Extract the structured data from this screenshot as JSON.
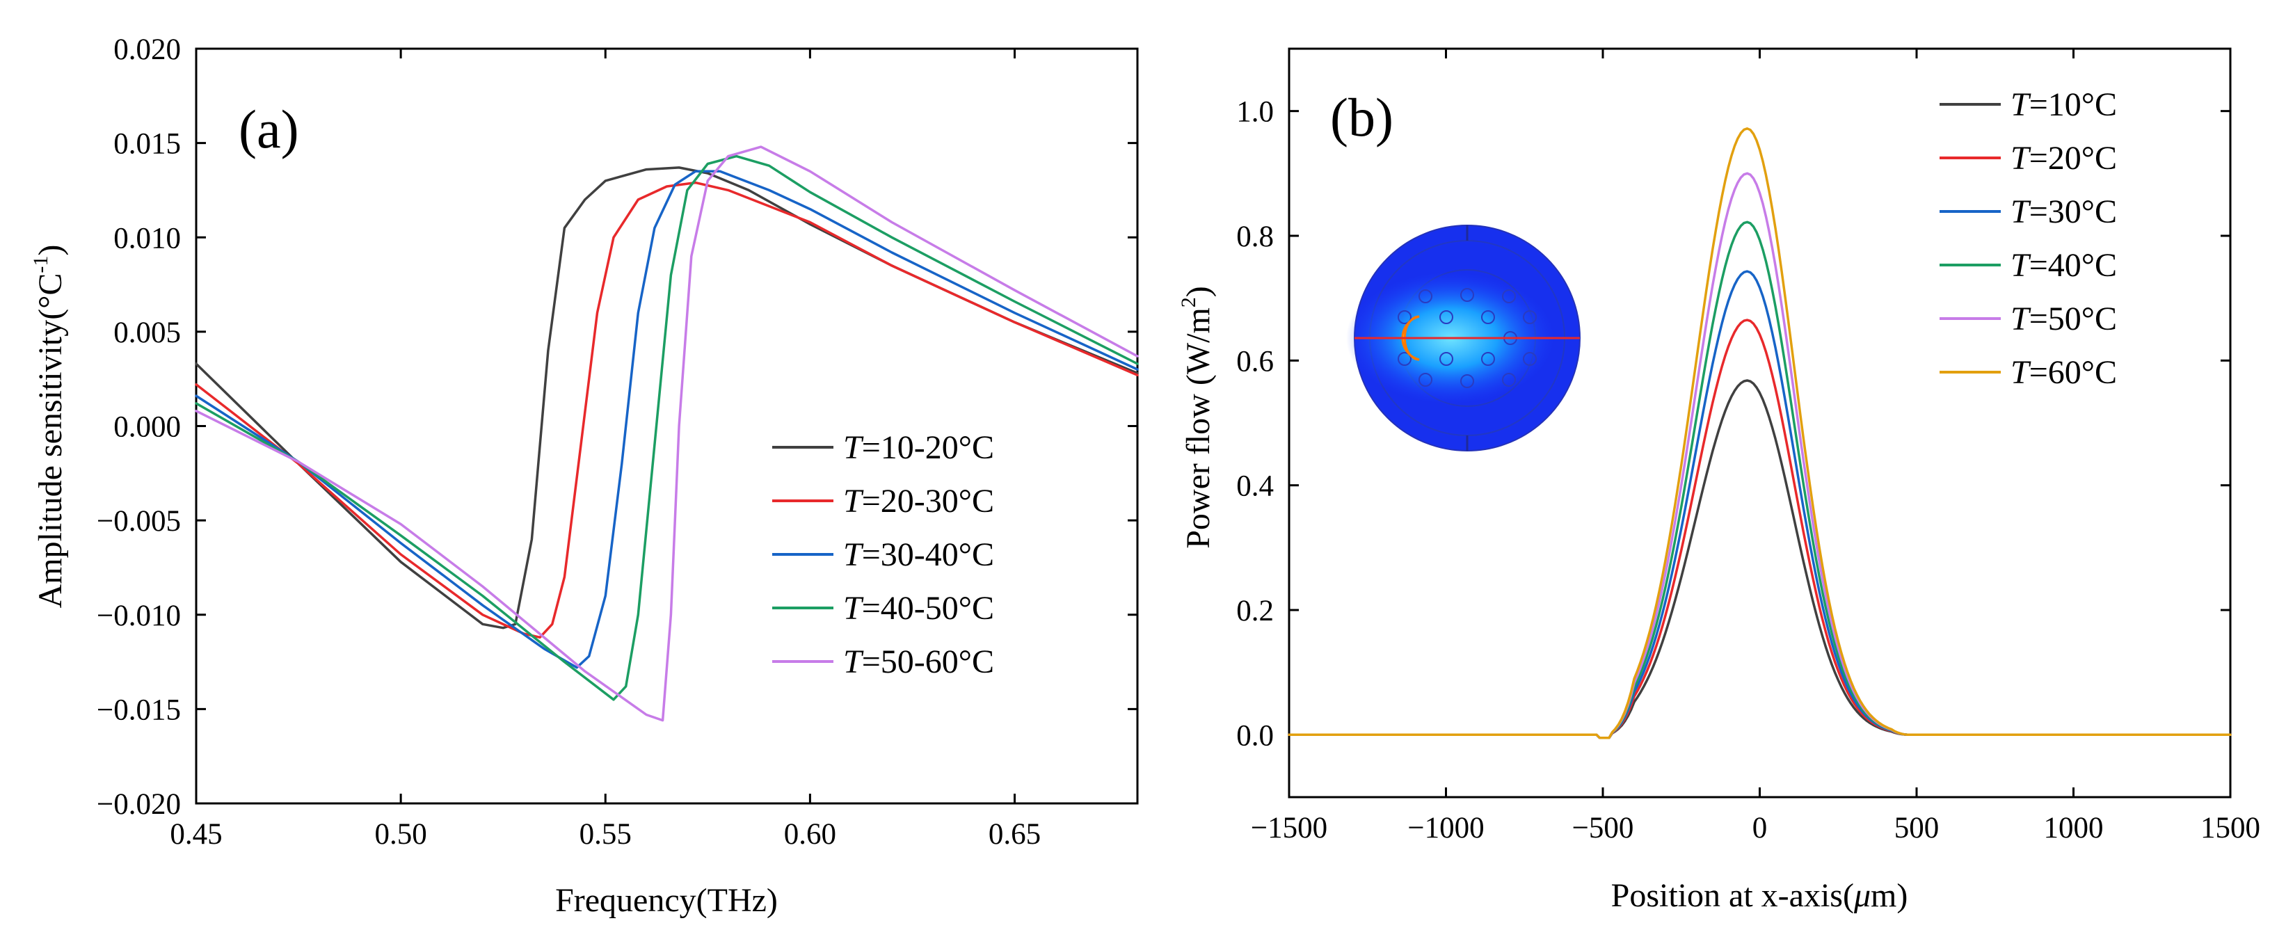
{
  "chart_data": [
    {
      "type": "line",
      "panel_label": "(a)",
      "xlabel": "Frequency(THz)",
      "ylabel": "Amplitude sensitivity(°C",
      "ylabel_sup": "-1",
      "ylabel_end": ")",
      "xlim": [
        0.45,
        0.68
      ],
      "ylim": [
        -0.02,
        0.02
      ],
      "x_ticks": [
        0.45,
        0.5,
        0.55,
        0.6,
        0.65
      ],
      "x_tick_labels": [
        "0.45",
        "0.50",
        "0.55",
        "0.60",
        "0.65"
      ],
      "y_ticks": [
        -0.02,
        -0.015,
        -0.01,
        -0.005,
        0.0,
        0.005,
        0.01,
        0.015,
        0.02
      ],
      "y_tick_labels": [
        "−0.020",
        "−0.015",
        "−0.010",
        "−0.005",
        "0.000",
        "0.005",
        "0.010",
        "0.015",
        "0.020"
      ],
      "legend_position": "lower-right",
      "series": [
        {
          "name_var": "T",
          "name_rest": "=10-20°C",
          "color": "#404040",
          "x": [
            0.45,
            0.475,
            0.5,
            0.52,
            0.525,
            0.528,
            0.532,
            0.536,
            0.54,
            0.545,
            0.55,
            0.56,
            0.568,
            0.575,
            0.585,
            0.6,
            0.62,
            0.65,
            0.68
          ],
          "y": [
            0.0033,
            -0.002,
            -0.0072,
            -0.0105,
            -0.0107,
            -0.0105,
            -0.006,
            0.004,
            0.0105,
            0.012,
            0.013,
            0.0136,
            0.0137,
            0.0134,
            0.0125,
            0.0107,
            0.0085,
            0.0055,
            0.0028
          ]
        },
        {
          "name_var": "T",
          "name_rest": "=20-30°C",
          "color": "#e8292b",
          "x": [
            0.45,
            0.475,
            0.5,
            0.52,
            0.53,
            0.534,
            0.537,
            0.54,
            0.544,
            0.548,
            0.552,
            0.558,
            0.565,
            0.572,
            0.58,
            0.6,
            0.62,
            0.65,
            0.68
          ],
          "y": [
            0.0022,
            -0.002,
            -0.0068,
            -0.01,
            -0.011,
            -0.0112,
            -0.0105,
            -0.008,
            -0.001,
            0.006,
            0.01,
            0.012,
            0.0127,
            0.0129,
            0.0125,
            0.0108,
            0.0085,
            0.0055,
            0.0027
          ]
        },
        {
          "name_var": "T",
          "name_rest": "=30-40°C",
          "color": "#1764c7",
          "x": [
            0.45,
            0.475,
            0.5,
            0.52,
            0.535,
            0.543,
            0.546,
            0.55,
            0.554,
            0.558,
            0.562,
            0.567,
            0.572,
            0.578,
            0.59,
            0.6,
            0.62,
            0.65,
            0.68
          ],
          "y": [
            0.0016,
            -0.0019,
            -0.0062,
            -0.0095,
            -0.0118,
            -0.0128,
            -0.0122,
            -0.009,
            -0.002,
            0.006,
            0.0105,
            0.0128,
            0.0135,
            0.0135,
            0.0125,
            0.0115,
            0.0092,
            0.006,
            0.003
          ]
        },
        {
          "name_var": "T",
          "name_rest": "=40-50°C",
          "color": "#1c9e63",
          "x": [
            0.45,
            0.475,
            0.5,
            0.52,
            0.54,
            0.552,
            0.555,
            0.558,
            0.562,
            0.566,
            0.57,
            0.575,
            0.582,
            0.59,
            0.6,
            0.62,
            0.65,
            0.68
          ],
          "y": [
            0.0012,
            -0.0019,
            -0.0058,
            -0.009,
            -0.0125,
            -0.0145,
            -0.0138,
            -0.01,
            -0.001,
            0.008,
            0.0125,
            0.0139,
            0.0143,
            0.0138,
            0.0124,
            0.01,
            0.0066,
            0.0033
          ]
        },
        {
          "name_var": "T",
          "name_rest": "=50-60°C",
          "color": "#c77ce8",
          "x": [
            0.45,
            0.475,
            0.5,
            0.52,
            0.545,
            0.56,
            0.564,
            0.566,
            0.568,
            0.571,
            0.575,
            0.58,
            0.588,
            0.6,
            0.62,
            0.65,
            0.68
          ],
          "y": [
            0.0008,
            -0.0019,
            -0.0052,
            -0.0085,
            -0.013,
            -0.0153,
            -0.0156,
            -0.01,
            0.0,
            0.009,
            0.013,
            0.0143,
            0.0148,
            0.0135,
            0.0108,
            0.0072,
            0.0037
          ]
        }
      ]
    },
    {
      "type": "line",
      "panel_label": "(b)",
      "xlabel_pre": "Position at x-axis(",
      "xlabel_mu": "μ",
      "xlabel_post": "m)",
      "ylabel": "Power flow (W/m",
      "ylabel_sup": "2",
      "ylabel_end": ")",
      "xlim": [
        -1500,
        1500
      ],
      "ylim": [
        -0.1,
        1.1
      ],
      "x_ticks": [
        -1500,
        -1000,
        -500,
        0,
        500,
        1000,
        1500
      ],
      "x_tick_labels": [
        "−1500",
        "−1000",
        "−500",
        "0",
        "500",
        "1000",
        "1500"
      ],
      "y_ticks": [
        0.0,
        0.2,
        0.4,
        0.6,
        0.8,
        1.0
      ],
      "y_tick_labels": [
        "0.0",
        "0.2",
        "0.4",
        "0.6",
        "0.8",
        "1.0"
      ],
      "legend_position": "top-right",
      "inset": "circular fiber cross-section field map",
      "peak_center": -40,
      "series": [
        {
          "name_var": "T",
          "name_rest": "=10°C",
          "color": "#404040",
          "peak": 0.568
        },
        {
          "name_var": "T",
          "name_rest": "=20°C",
          "color": "#e8292b",
          "peak": 0.665
        },
        {
          "name_var": "T",
          "name_rest": "=30°C",
          "color": "#1764c7",
          "peak": 0.743
        },
        {
          "name_var": "T",
          "name_rest": "=40°C",
          "color": "#1c9e63",
          "peak": 0.822
        },
        {
          "name_var": "T",
          "name_rest": "=50°C",
          "color": "#c77ce8",
          "peak": 0.9
        },
        {
          "name_var": "T",
          "name_rest": "=60°C",
          "color": "#e2a00f",
          "peak": 0.972
        }
      ]
    }
  ]
}
